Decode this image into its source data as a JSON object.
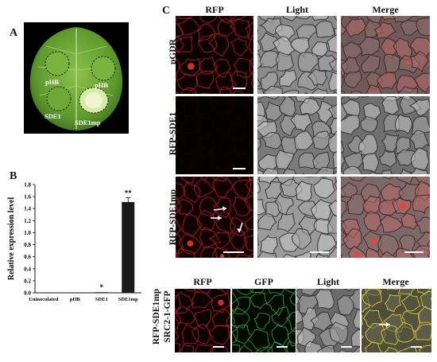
{
  "panel_a": {
    "letter": "A",
    "labels": {
      "top_left": "pHB",
      "top_right": "pHB",
      "bottom_left": "SDE1",
      "bottom_right": "SDE1mp"
    }
  },
  "panel_b": {
    "letter": "B",
    "chart_data": {
      "type": "bar",
      "categories": [
        "Uninoculated",
        "pHB",
        "SDE1",
        "SDE1mp"
      ],
      "values": [
        0.0,
        0.0,
        0.01,
        1.51
      ],
      "errors": [
        0.0,
        0.0,
        0.005,
        0.07
      ],
      "significance": [
        "",
        "",
        "*",
        "**"
      ],
      "ylabel": "Relative expression level",
      "xlabel": "",
      "ylim": [
        0,
        1.8
      ],
      "yticks": [
        "0.0",
        "0.2",
        "0.4",
        "0.6",
        "0.8",
        "1.0",
        "1.2",
        "1.4",
        "1.6",
        "1.8"
      ],
      "bar_color": "#1a1a1a",
      "grid": false
    }
  },
  "panel_c": {
    "letter": "C",
    "columns": [
      "RFP",
      "Light",
      "Merge"
    ],
    "rows": [
      "pGDR",
      "RFP-SDE1",
      "RFP-SDE1mp"
    ]
  },
  "panel_d": {
    "columns": [
      "RFP",
      "GFP",
      "Light",
      "Merge"
    ],
    "row_label_line1": "RFP-SDE1mp",
    "row_label_line2": "SRC2-1-GFP"
  },
  "colors": {
    "rfp_cell_wall": "#c8201e",
    "gfp_cell_wall": "#3fb02a",
    "merge_yellow": "#d9c43a",
    "leaf_green": "#5f9a2e",
    "leaf_dark": "#3a6e1a"
  }
}
